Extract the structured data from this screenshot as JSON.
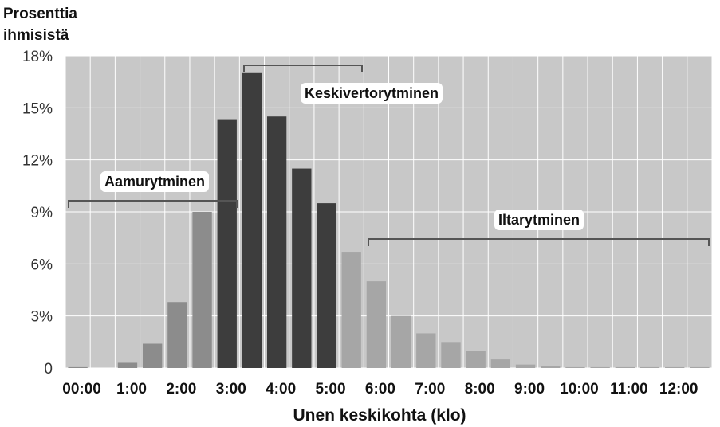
{
  "chart_data": {
    "type": "bar",
    "ylabel_lines": [
      "Prosenttia",
      "ihmisistä"
    ],
    "xlabel": "Unen keskikohta (klo)",
    "ylim": [
      0,
      18
    ],
    "yticks": [
      0,
      3,
      6,
      9,
      12,
      15,
      18
    ],
    "ytick_labels": [
      "0",
      "3%",
      "6%",
      "9%",
      "12%",
      "15%",
      "18%"
    ],
    "xtick_labels": [
      "00:00",
      "1:00",
      "2:00",
      "3:00",
      "4:00",
      "5:00",
      "6:00",
      "7:00",
      "8:00",
      "9:00",
      "10:00",
      "11:00",
      "12:00"
    ],
    "grid": true,
    "background_color": "#c8c8c8",
    "bins": [
      "00:00",
      "00:30",
      "1:00",
      "1:30",
      "2:00",
      "2:30",
      "3:00",
      "3:30",
      "4:00",
      "4:30",
      "5:00",
      "5:30",
      "6:00",
      "6:30",
      "7:00",
      "7:30",
      "8:00",
      "8:30",
      "9:00",
      "9:30",
      "10:00",
      "10:30",
      "11:00",
      "11:30",
      "12:00",
      "12:30"
    ],
    "values": [
      0.05,
      0.0,
      0.3,
      1.4,
      3.8,
      9.0,
      14.3,
      17.0,
      14.5,
      11.5,
      9.5,
      6.7,
      5.0,
      3.0,
      2.0,
      1.5,
      1.0,
      0.5,
      0.2,
      0.1,
      0.05,
      0.05,
      0.05,
      0.05,
      0.05,
      0.05
    ],
    "groups": [
      {
        "label": "Aamurytminen",
        "start": 0,
        "end": 5,
        "color": "#8c8c8c"
      },
      {
        "label": "Keskivertorytminen",
        "start": 6,
        "end": 10,
        "color": "#3d3d3d"
      },
      {
        "label": "Iltarytminen",
        "start": 11,
        "end": 25,
        "color": "#a6a6a6"
      }
    ]
  }
}
